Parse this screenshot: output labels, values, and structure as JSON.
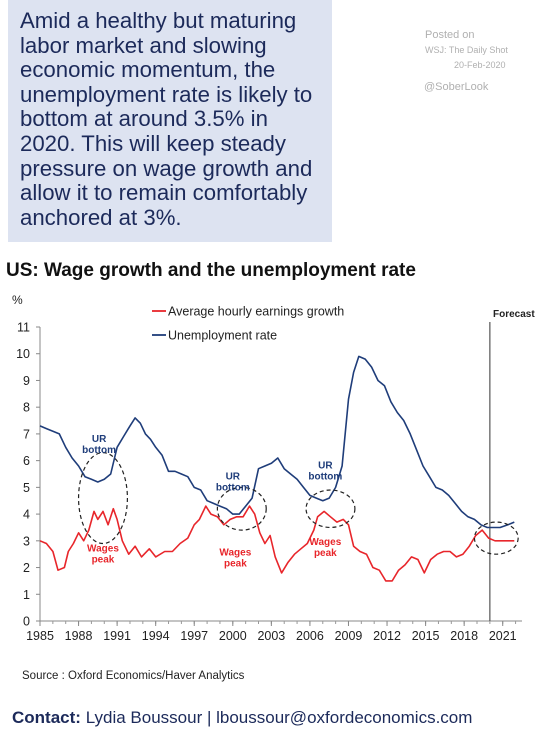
{
  "callout": {
    "lines": [
      "Amid a healthy but maturing",
      "labor market and slowing",
      "economic momentum, the",
      "unemployment rate is likely to",
      "bottom at around 3.5% in",
      "2020. This will keep steady",
      "pressure on wage growth and",
      "allow it to remain comfortably",
      "anchored at 3%."
    ]
  },
  "watermark": {
    "posted": "Posted on",
    "source": "WSJ: The Daily Shot",
    "date": "20-Feb-2020",
    "handle": "@SoberLook"
  },
  "title": "US: Wage growth and the unemployment rate",
  "source_note": "Source : Oxford Economics/Haver Analytics",
  "contact": {
    "label": "Contact:",
    "text": "Lydia Boussour | lboussour@oxfordeconomics.com"
  },
  "colors": {
    "wages": "#e8262b",
    "unemployment": "#1f3d7a",
    "annotation_text_blue": "#1f3d7a",
    "annotation_text_red": "#e8262b"
  },
  "chart_data": {
    "type": "line",
    "ylabel": "%",
    "ylim": [
      0,
      11
    ],
    "yticks": [
      0,
      1,
      2,
      3,
      4,
      5,
      6,
      7,
      8,
      9,
      10,
      11
    ],
    "xlim": [
      1985,
      2022.5
    ],
    "xticks": [
      1985,
      1988,
      1991,
      1994,
      1997,
      2000,
      2003,
      2006,
      2009,
      2012,
      2015,
      2018,
      2021
    ],
    "forecast_start": 2020.0,
    "forecast_label": "Forecast",
    "grid": false,
    "legend": "top-center",
    "series": [
      {
        "name": "Average hourly earnings growth",
        "key": "wages",
        "points": [
          [
            1985.0,
            3.0
          ],
          [
            1985.5,
            2.9
          ],
          [
            1986.0,
            2.6
          ],
          [
            1986.4,
            1.9
          ],
          [
            1986.9,
            2.0
          ],
          [
            1987.2,
            2.6
          ],
          [
            1987.6,
            2.9
          ],
          [
            1988.0,
            3.3
          ],
          [
            1988.4,
            3.0
          ],
          [
            1988.8,
            3.4
          ],
          [
            1989.2,
            4.1
          ],
          [
            1989.5,
            3.8
          ],
          [
            1989.9,
            4.1
          ],
          [
            1990.3,
            3.6
          ],
          [
            1990.7,
            4.2
          ],
          [
            1991.0,
            3.8
          ],
          [
            1991.4,
            3.0
          ],
          [
            1991.9,
            2.5
          ],
          [
            1992.4,
            2.8
          ],
          [
            1992.9,
            2.4
          ],
          [
            1993.5,
            2.7
          ],
          [
            1994.0,
            2.4
          ],
          [
            1994.7,
            2.6
          ],
          [
            1995.3,
            2.6
          ],
          [
            1995.9,
            2.9
          ],
          [
            1996.5,
            3.1
          ],
          [
            1997.0,
            3.6
          ],
          [
            1997.4,
            3.8
          ],
          [
            1997.9,
            4.3
          ],
          [
            1998.3,
            4.0
          ],
          [
            1998.8,
            3.9
          ],
          [
            1999.3,
            3.6
          ],
          [
            1999.8,
            3.8
          ],
          [
            2000.3,
            3.9
          ],
          [
            2000.8,
            3.9
          ],
          [
            2001.3,
            4.3
          ],
          [
            2001.7,
            4.0
          ],
          [
            2002.1,
            3.3
          ],
          [
            2002.5,
            2.9
          ],
          [
            2002.9,
            3.2
          ],
          [
            2003.3,
            2.4
          ],
          [
            2003.8,
            1.8
          ],
          [
            2004.3,
            2.2
          ],
          [
            2004.8,
            2.5
          ],
          [
            2005.3,
            2.7
          ],
          [
            2005.8,
            2.9
          ],
          [
            2006.3,
            3.4
          ],
          [
            2006.6,
            3.9
          ],
          [
            2007.1,
            4.1
          ],
          [
            2007.6,
            3.9
          ],
          [
            2008.1,
            3.7
          ],
          [
            2008.6,
            3.8
          ],
          [
            2009.0,
            3.6
          ],
          [
            2009.4,
            2.8
          ],
          [
            2009.9,
            2.6
          ],
          [
            2010.4,
            2.5
          ],
          [
            2010.9,
            2.0
          ],
          [
            2011.4,
            1.9
          ],
          [
            2011.9,
            1.5
          ],
          [
            2012.4,
            1.5
          ],
          [
            2012.9,
            1.9
          ],
          [
            2013.4,
            2.1
          ],
          [
            2013.9,
            2.4
          ],
          [
            2014.4,
            2.3
          ],
          [
            2014.9,
            1.8
          ],
          [
            2015.4,
            2.3
          ],
          [
            2015.9,
            2.5
          ],
          [
            2016.4,
            2.6
          ],
          [
            2016.9,
            2.6
          ],
          [
            2017.4,
            2.4
          ],
          [
            2017.9,
            2.5
          ],
          [
            2018.4,
            2.8
          ],
          [
            2018.9,
            3.2
          ],
          [
            2019.4,
            3.4
          ],
          [
            2019.9,
            3.1
          ],
          [
            2020.4,
            3.0
          ],
          [
            2021.0,
            3.0
          ],
          [
            2021.9,
            3.0
          ]
        ]
      },
      {
        "name": "Unemployment rate",
        "key": "unemployment",
        "points": [
          [
            1985.0,
            7.3
          ],
          [
            1985.5,
            7.2
          ],
          [
            1986.0,
            7.1
          ],
          [
            1986.5,
            7.0
          ],
          [
            1987.0,
            6.5
          ],
          [
            1987.5,
            6.1
          ],
          [
            1988.0,
            5.8
          ],
          [
            1988.5,
            5.4
          ],
          [
            1989.0,
            5.3
          ],
          [
            1989.5,
            5.2
          ],
          [
            1990.0,
            5.3
          ],
          [
            1990.5,
            5.5
          ],
          [
            1991.0,
            6.5
          ],
          [
            1991.5,
            6.9
          ],
          [
            1992.0,
            7.3
          ],
          [
            1992.4,
            7.6
          ],
          [
            1992.8,
            7.4
          ],
          [
            1993.2,
            7.0
          ],
          [
            1993.6,
            6.8
          ],
          [
            1994.0,
            6.5
          ],
          [
            1994.5,
            6.2
          ],
          [
            1995.0,
            5.6
          ],
          [
            1995.5,
            5.6
          ],
          [
            1996.0,
            5.5
          ],
          [
            1996.5,
            5.4
          ],
          [
            1997.0,
            5.0
          ],
          [
            1997.5,
            4.9
          ],
          [
            1998.0,
            4.5
          ],
          [
            1998.5,
            4.4
          ],
          [
            1999.0,
            4.3
          ],
          [
            1999.5,
            4.2
          ],
          [
            2000.0,
            4.0
          ],
          [
            2000.5,
            4.0
          ],
          [
            2001.0,
            4.3
          ],
          [
            2001.5,
            4.6
          ],
          [
            2002.0,
            5.7
          ],
          [
            2002.5,
            5.8
          ],
          [
            2003.0,
            5.9
          ],
          [
            2003.5,
            6.1
          ],
          [
            2004.0,
            5.7
          ],
          [
            2004.5,
            5.5
          ],
          [
            2005.0,
            5.3
          ],
          [
            2005.5,
            5.0
          ],
          [
            2006.0,
            4.7
          ],
          [
            2006.5,
            4.6
          ],
          [
            2007.0,
            4.5
          ],
          [
            2007.5,
            4.6
          ],
          [
            2008.0,
            5.0
          ],
          [
            2008.5,
            5.8
          ],
          [
            2009.0,
            8.3
          ],
          [
            2009.4,
            9.3
          ],
          [
            2009.8,
            9.9
          ],
          [
            2010.3,
            9.8
          ],
          [
            2010.8,
            9.5
          ],
          [
            2011.3,
            9.0
          ],
          [
            2011.8,
            8.8
          ],
          [
            2012.3,
            8.2
          ],
          [
            2012.8,
            7.8
          ],
          [
            2013.3,
            7.5
          ],
          [
            2013.8,
            7.0
          ],
          [
            2014.3,
            6.4
          ],
          [
            2014.8,
            5.8
          ],
          [
            2015.3,
            5.4
          ],
          [
            2015.8,
            5.0
          ],
          [
            2016.3,
            4.9
          ],
          [
            2016.8,
            4.7
          ],
          [
            2017.3,
            4.4
          ],
          [
            2017.8,
            4.1
          ],
          [
            2018.3,
            3.9
          ],
          [
            2018.8,
            3.8
          ],
          [
            2019.3,
            3.6
          ],
          [
            2019.8,
            3.5
          ],
          [
            2020.3,
            3.5
          ],
          [
            2020.8,
            3.5
          ],
          [
            2021.4,
            3.6
          ],
          [
            2021.9,
            3.7
          ]
        ]
      }
    ],
    "annotations": [
      {
        "key": "ur1",
        "text": [
          "UR",
          "bottom"
        ],
        "color": "blue",
        "x": 1989.6,
        "y": 6.7
      },
      {
        "key": "wg1",
        "text": [
          "Wages",
          "peak"
        ],
        "color": "red",
        "x": 1989.9,
        "y": 2.6
      },
      {
        "key": "ur2",
        "text": [
          "UR",
          "bottom"
        ],
        "color": "blue",
        "x": 2000.0,
        "y": 5.3
      },
      {
        "key": "wg2",
        "text": [
          "Wages",
          "peak"
        ],
        "color": "red",
        "x": 2000.2,
        "y": 2.45
      },
      {
        "key": "ur3",
        "text": [
          "UR",
          "bottom"
        ],
        "color": "blue",
        "x": 2007.2,
        "y": 5.7
      },
      {
        "key": "wg3",
        "text": [
          "Wages",
          "peak"
        ],
        "color": "red",
        "x": 2007.2,
        "y": 2.85
      }
    ],
    "circles": [
      {
        "cx": 1989.9,
        "cy": 4.6,
        "rx": 1.9,
        "ry": 1.7
      },
      {
        "cx": 2000.7,
        "cy": 4.2,
        "rx": 1.9,
        "ry": 0.8
      },
      {
        "cx": 2007.6,
        "cy": 4.2,
        "rx": 1.9,
        "ry": 0.7
      },
      {
        "cx": 2020.5,
        "cy": 3.1,
        "rx": 1.7,
        "ry": 0.6
      }
    ]
  }
}
